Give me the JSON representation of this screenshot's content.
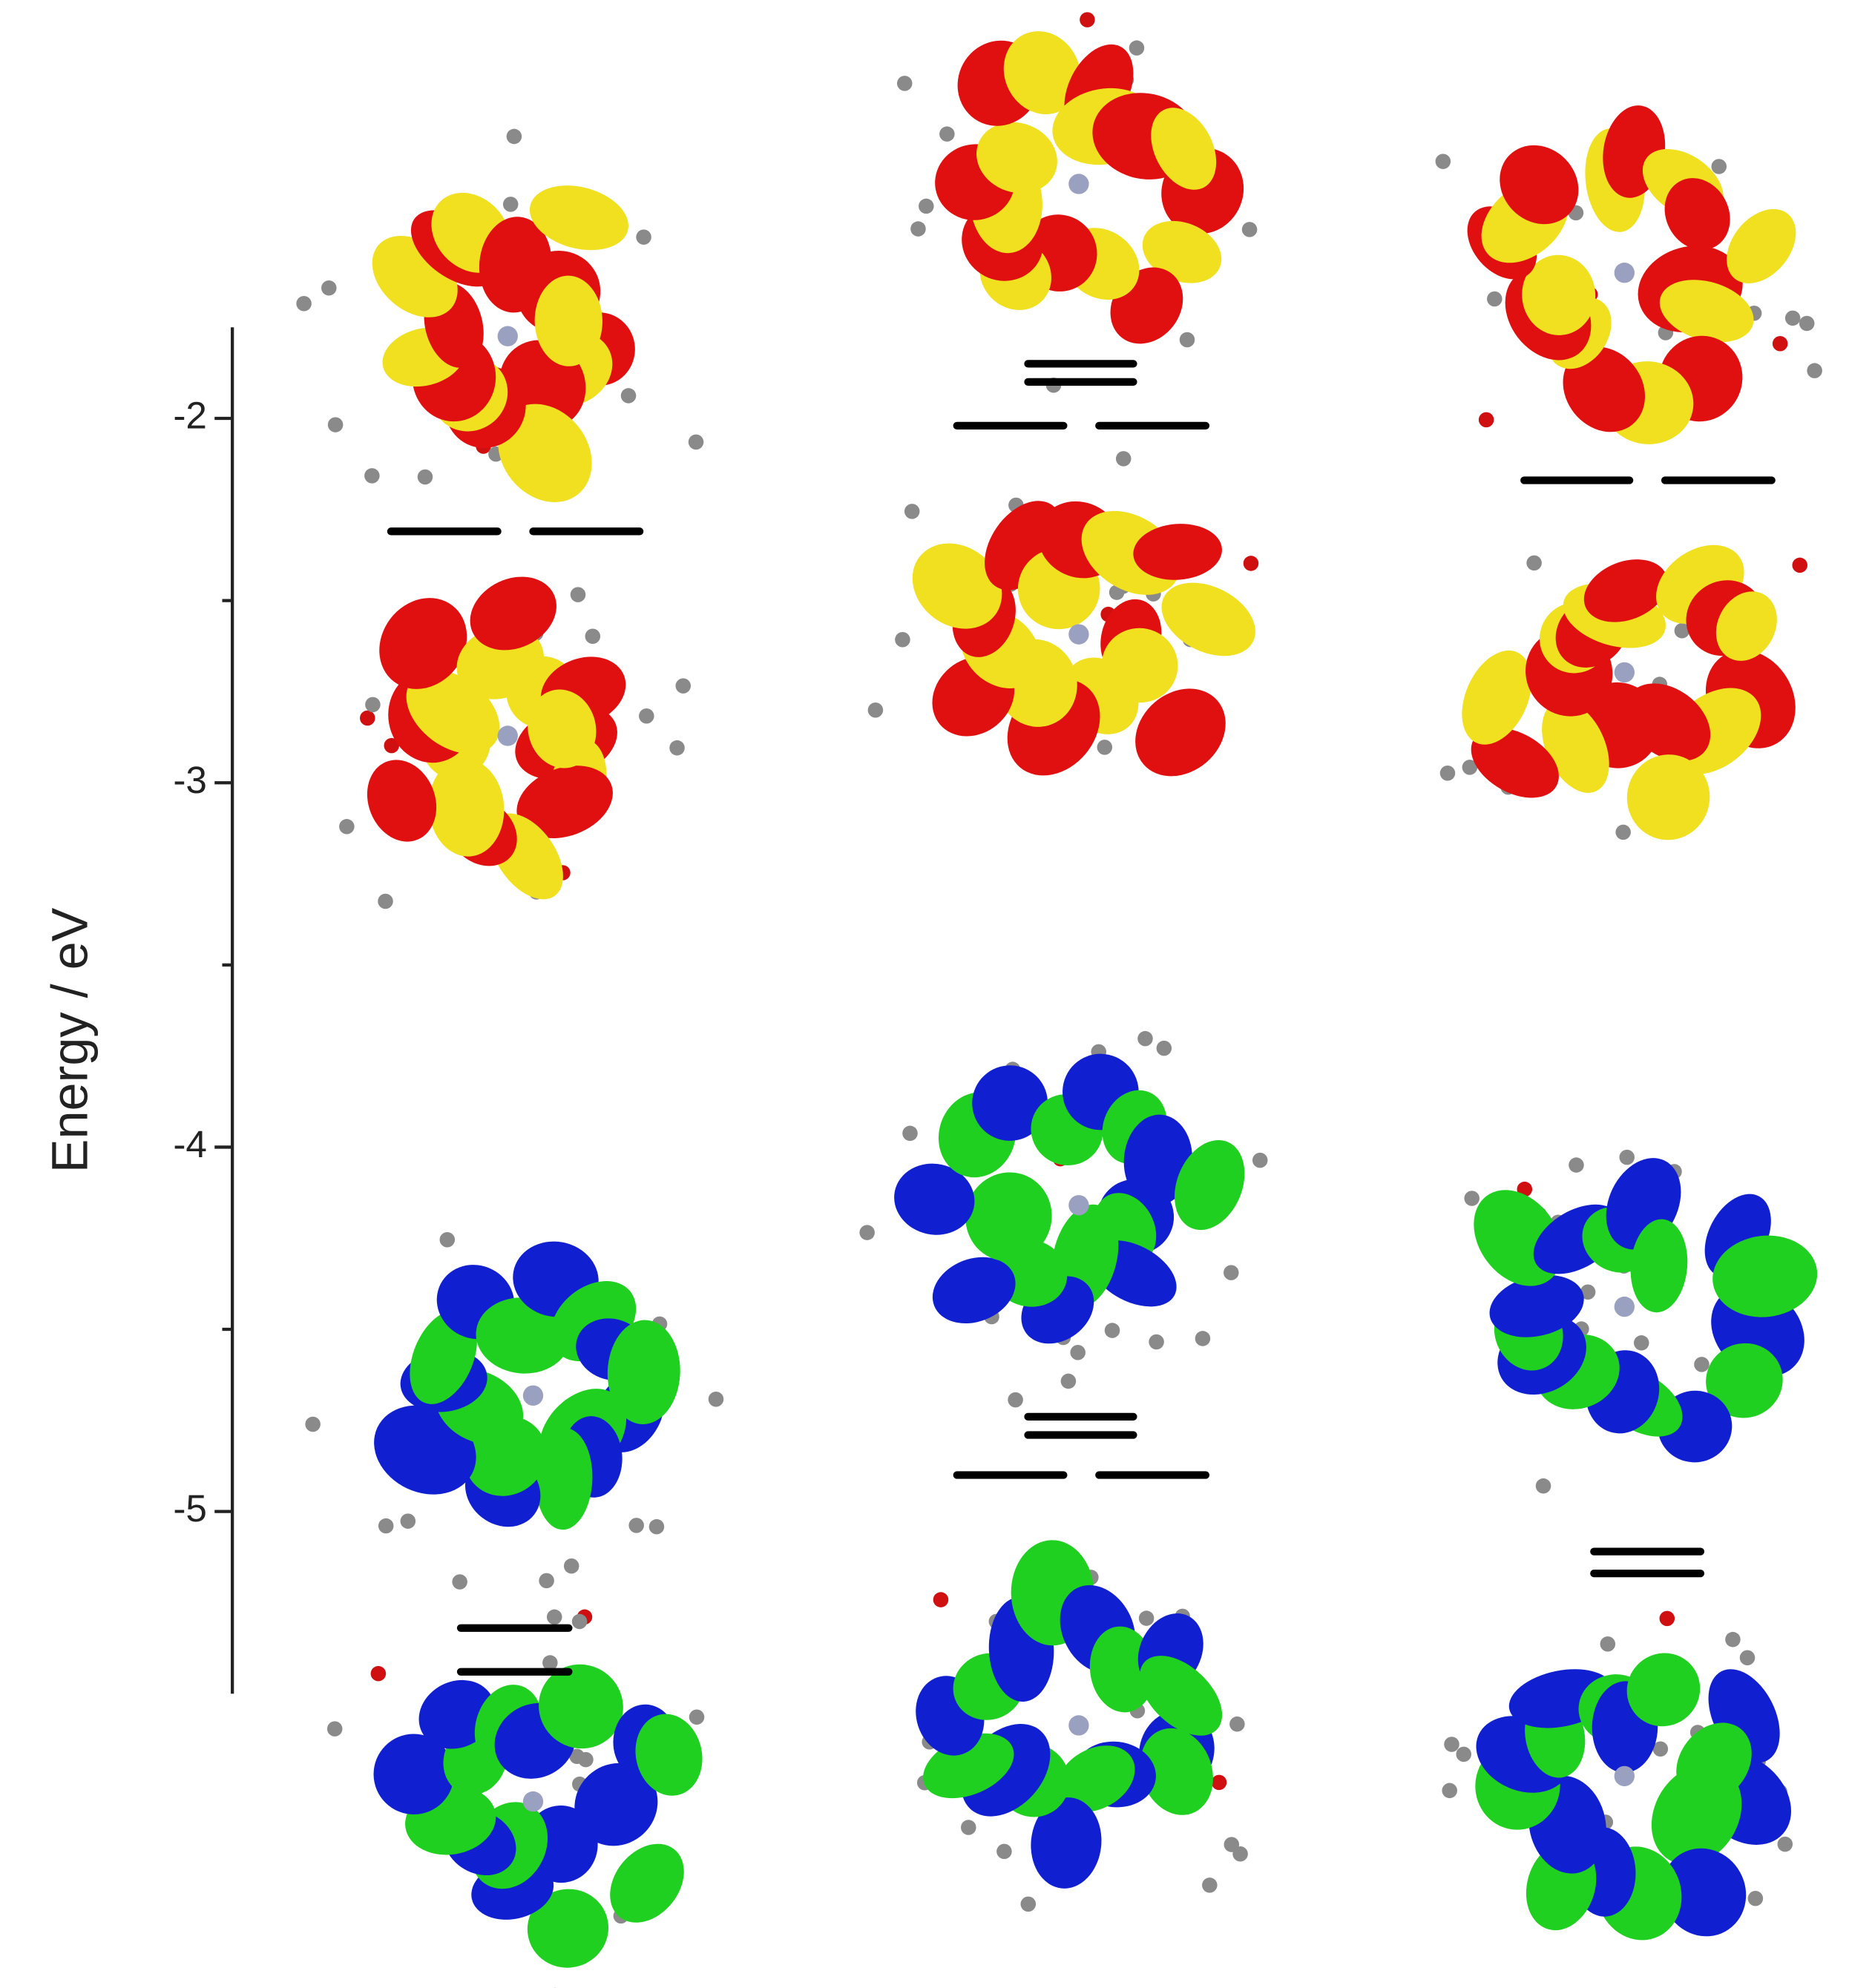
{
  "chart_data": {
    "type": "energy-level",
    "ylabel": "Energy / eV",
    "ylim": [
      -5.5,
      -1.75
    ],
    "yticks": [
      -2,
      -3,
      -4,
      -5
    ],
    "yminorticks": [
      -2.5,
      -3.5,
      -4.5
    ],
    "color": "#000000",
    "series": [
      {
        "values": [
          -2.31,
          -2.31,
          -5.32,
          -5.44
        ]
      },
      {
        "values": [
          -1.85,
          -1.9,
          -2.02,
          -2.02,
          -4.74,
          -4.79,
          -4.9,
          -4.9
        ]
      },
      {
        "values": [
          -2.17,
          -2.17,
          -5.11,
          -5.17
        ]
      }
    ]
  }
}
